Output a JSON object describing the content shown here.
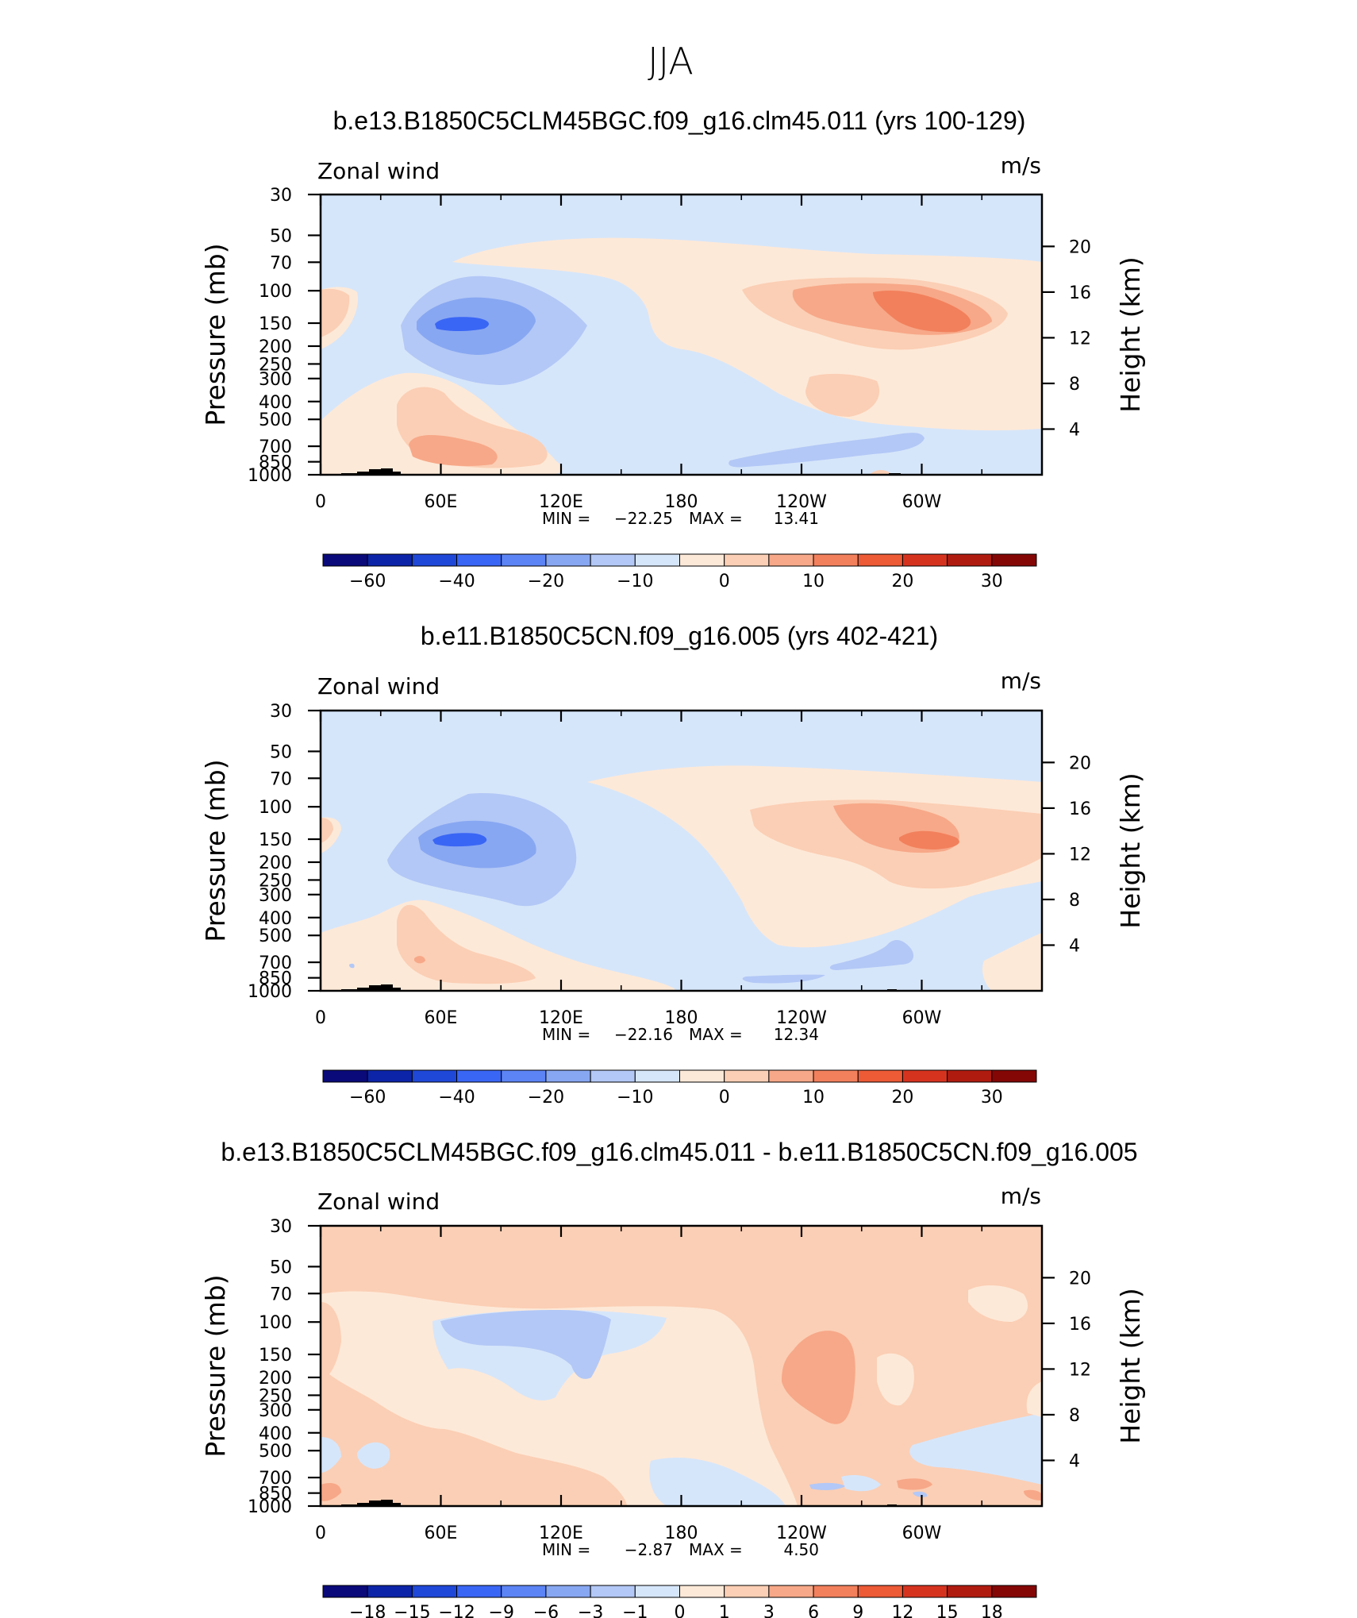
{
  "figure": {
    "season_title": "JJA",
    "panels": [
      {
        "title": "b.e13.B1850C5CLM45BGC.f09_g16.clm45.011 (yrs 100-129)",
        "left_string": "Zonal wind",
        "right_string": "m/s",
        "min_label": "MIN =",
        "min_value": "−22.25",
        "max_label": "MAX =",
        "max_value": "13.41"
      },
      {
        "title": "b.e11.B1850C5CN.f09_g16.005 (yrs 402-421)",
        "left_string": "Zonal wind",
        "right_string": "m/s",
        "min_label": "MIN =",
        "min_value": "−22.16",
        "max_label": "MAX =",
        "max_value": "12.34"
      },
      {
        "title": "b.e13.B1850C5CLM45BGC.f09_g16.clm45.011 - b.e11.B1850C5CN.f09_g16.005",
        "left_string": "Zonal wind",
        "right_string": "m/s",
        "min_label": "MIN =",
        "min_value": "−2.87",
        "max_label": "MAX =",
        "max_value": "4.50"
      }
    ]
  },
  "chart_data": [
    {
      "type": "heatmap",
      "title": "b.e13.B1850C5CLM45BGC.f09_g16.clm45.011 (yrs 100-129)",
      "variable": "Zonal wind",
      "units": "m/s",
      "xlabel": "",
      "ylabel": "Pressure (mb)",
      "ylabel_right": "Height (km)",
      "x_ticks": [
        "0",
        "60E",
        "120E",
        "180",
        "120W",
        "60W"
      ],
      "y_ticks": [
        "30",
        "50",
        "70",
        "100",
        "150",
        "200",
        "250",
        "300",
        "400",
        "500",
        "700",
        "850",
        "1000"
      ],
      "y_ticks_right": [
        "20",
        "16",
        "12",
        "8",
        "4"
      ],
      "colorbar_ticks": [
        "−60",
        "−40",
        "−20",
        "−10",
        "0",
        "10",
        "20",
        "30"
      ],
      "colorbar_colors": [
        "#0a0a7a",
        "#0c24a8",
        "#1f48d8",
        "#3a66f5",
        "#5c84f5",
        "#88a7f2",
        "#b3c8f6",
        "#d6e6fa",
        "#fde9d8",
        "#fbcfb5",
        "#f7a888",
        "#f2805c",
        "#ec5a36",
        "#d6331f",
        "#b01b10",
        "#840706"
      ],
      "min": -22.25,
      "max": 13.41
    },
    {
      "type": "heatmap",
      "title": "b.e11.B1850C5CN.f09_g16.005 (yrs 402-421)",
      "variable": "Zonal wind",
      "units": "m/s",
      "xlabel": "",
      "ylabel": "Pressure (mb)",
      "ylabel_right": "Height (km)",
      "x_ticks": [
        "0",
        "60E",
        "120E",
        "180",
        "120W",
        "60W"
      ],
      "y_ticks": [
        "30",
        "50",
        "70",
        "100",
        "150",
        "200",
        "250",
        "300",
        "400",
        "500",
        "700",
        "850",
        "1000"
      ],
      "y_ticks_right": [
        "20",
        "16",
        "12",
        "8",
        "4"
      ],
      "colorbar_ticks": [
        "−60",
        "−40",
        "−20",
        "−10",
        "0",
        "10",
        "20",
        "30"
      ],
      "colorbar_colors": [
        "#0a0a7a",
        "#0c24a8",
        "#1f48d8",
        "#3a66f5",
        "#5c84f5",
        "#88a7f2",
        "#b3c8f6",
        "#d6e6fa",
        "#fde9d8",
        "#fbcfb5",
        "#f7a888",
        "#f2805c",
        "#ec5a36",
        "#d6331f",
        "#b01b10",
        "#840706"
      ],
      "min": -22.16,
      "max": 12.34
    },
    {
      "type": "heatmap",
      "title": "b.e13.B1850C5CLM45BGC.f09_g16.clm45.011 - b.e11.B1850C5CN.f09_g16.005",
      "variable": "Zonal wind",
      "units": "m/s",
      "xlabel": "",
      "ylabel": "Pressure (mb)",
      "ylabel_right": "Height (km)",
      "x_ticks": [
        "0",
        "60E",
        "120E",
        "180",
        "120W",
        "60W"
      ],
      "y_ticks": [
        "30",
        "50",
        "70",
        "100",
        "150",
        "200",
        "250",
        "300",
        "400",
        "500",
        "700",
        "850",
        "1000"
      ],
      "y_ticks_right": [
        "20",
        "16",
        "12",
        "8",
        "4"
      ],
      "colorbar_ticks": [
        "−18",
        "−15",
        "−12",
        "−9",
        "−6",
        "−3",
        "−1",
        "0",
        "1",
        "3",
        "6",
        "9",
        "12",
        "15",
        "18"
      ],
      "colorbar_colors": [
        "#0a0a7a",
        "#0c24a8",
        "#1f48d8",
        "#3a66f5",
        "#5c84f5",
        "#88a7f2",
        "#b3c8f6",
        "#d6e6fa",
        "#fde9d8",
        "#fbcfb5",
        "#f7a888",
        "#f2805c",
        "#ec5a36",
        "#d6331f",
        "#b01b10",
        "#840706"
      ],
      "min": -2.87,
      "max": 4.5
    }
  ]
}
